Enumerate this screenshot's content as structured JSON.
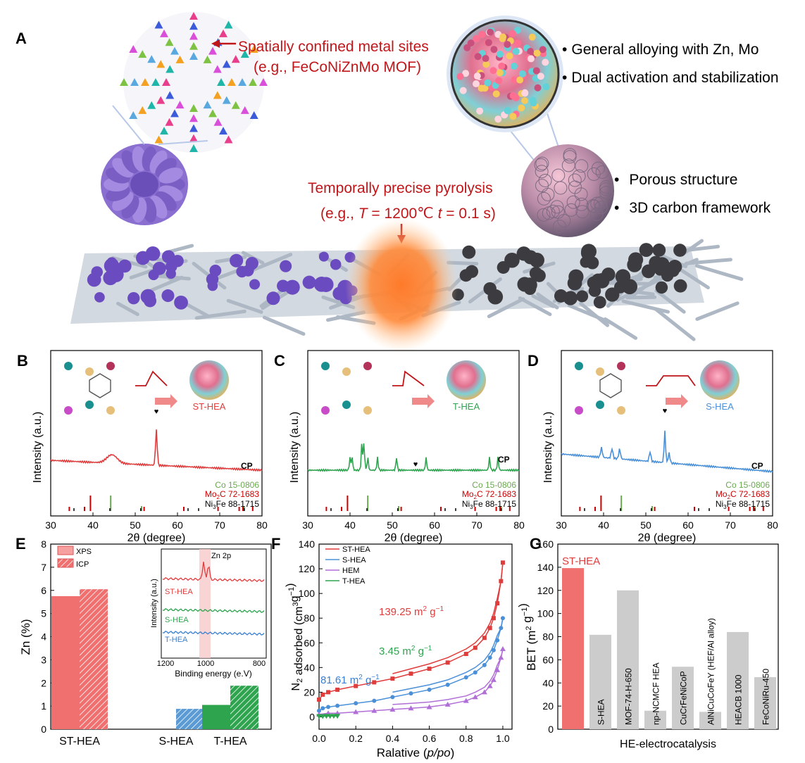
{
  "figure": {
    "panels": {
      "A": "A",
      "B": "B",
      "C": "C",
      "D": "D",
      "E": "E",
      "F": "F",
      "G": "G"
    }
  },
  "panel_a": {
    "arrow_text_1": "Spatially confined metal sites",
    "arrow_text_2": "(e.g., FeCoNiZnMo MOF)",
    "bullets_top": [
      "General alloying with Zn, Mo",
      "Dual activation and stabilization"
    ],
    "pyrolysis_title": "Temporally precise pyrolysis",
    "pyrolysis_prefix": "(e.g., ",
    "pyrolysis_T": "T",
    "pyrolysis_eq1": " = 1200℃ ",
    "pyrolysis_t": "t",
    "pyrolysis_eq2": " = 0.1 s)",
    "bullets_bottom": [
      "Porous structure",
      "3D carbon framework"
    ],
    "bullet_glyph": "•"
  },
  "xrd_panels": {
    "B": {
      "sample": "ST-HEA",
      "color": "#e03c3c",
      "profile": "single-pulse",
      "main_peak_deg": 55,
      "low_peak_deg": 44.5
    },
    "C": {
      "sample": "T-HEA",
      "color": "#2ea44f",
      "profile": "sharp-pulse",
      "peaks_deg": [
        40,
        40.5,
        42.8,
        43.3,
        44.2,
        46.5,
        51,
        58,
        73,
        75
      ]
    },
    "D": {
      "sample": "S-HEA",
      "color": "#4a90d9",
      "profile": "long-plateau",
      "main_peak_deg": 54.5,
      "peaks_deg": [
        39.5,
        42,
        43.8,
        51,
        55.5
      ]
    }
  },
  "xrd_axes": {
    "ylabel": "Intensity (a.u.)",
    "xlabel_prefix": "2θ (degree)",
    "xmin": 30,
    "xmax": 80,
    "ticks": [
      "30",
      "40",
      "50",
      "60",
      "70",
      "80"
    ],
    "cp_label": "CP",
    "heart_glyph": "♥",
    "refs": [
      {
        "name": "Co 15-0806",
        "color": "#6aa84f"
      },
      {
        "name": "Mo2C 72-1683",
        "color": "#cc0000"
      },
      {
        "name": "Ni3Fe 88-1715",
        "color": "#000000"
      }
    ],
    "ref_labels": {
      "co": "Co 15-0806",
      "mo_a": "Mo",
      "mo_sub": "2",
      "mo_b": "C 72-1683",
      "ni_a": "Ni",
      "ni_sub": "3",
      "ni_b": "Fe 88-1715"
    }
  },
  "chart_data": [
    {
      "panel": "E",
      "type": "bar",
      "categories": [
        "ST-HEA",
        "S-HEA",
        "T-HEA"
      ],
      "series": [
        {
          "name": "XPS",
          "values": [
            5.75,
            null,
            1.05
          ]
        },
        {
          "name": "ICP",
          "values": [
            6.05,
            0.88,
            1.88
          ]
        }
      ],
      "ylabel": "Zn (%)",
      "ylim": [
        0,
        8
      ],
      "yticks": [
        "0",
        "1",
        "2",
        "3",
        "4",
        "5",
        "6",
        "7",
        "8"
      ],
      "colors": {
        "ST-HEA": "#f07070",
        "S-HEA": "#5b9bd5",
        "T-HEA": "#2ea44f"
      },
      "legend": "top-left",
      "inset": {
        "xlabel": "Binding energy (e.V)",
        "ylabel": "Intensity (a.u.)",
        "xticks": [
          "1200",
          "1000",
          "800"
        ],
        "annotation": "Zn 2p",
        "series": [
          "ST-HEA",
          "S-HEA",
          "T-HEA"
        ]
      }
    },
    {
      "panel": "F",
      "type": "line",
      "xlabel": "Ralative (p/po)",
      "xlim": [
        0,
        1.05
      ],
      "ylim": [
        -10,
        140
      ],
      "xticks": [
        "0.0",
        "0.2",
        "0.4",
        "0.6",
        "0.8",
        "1.0"
      ],
      "yticks": [
        "0",
        "20",
        "40",
        "60",
        "80",
        "100",
        "120",
        "140"
      ],
      "series": [
        {
          "name": "ST-HEA",
          "color": "#e03c3c",
          "x": [
            0.0,
            0.02,
            0.05,
            0.1,
            0.2,
            0.3,
            0.4,
            0.5,
            0.6,
            0.7,
            0.8,
            0.85,
            0.9,
            0.93,
            0.95,
            0.97,
            0.99,
            1.0
          ],
          "y": [
            14,
            18,
            20,
            22,
            25,
            28,
            31,
            35,
            39,
            44,
            51,
            56,
            64,
            72,
            80,
            92,
            110,
            125
          ]
        },
        {
          "name": "S-HEA",
          "color": "#4a90d9",
          "x": [
            0.0,
            0.02,
            0.05,
            0.1,
            0.2,
            0.3,
            0.4,
            0.5,
            0.6,
            0.7,
            0.8,
            0.85,
            0.9,
            0.93,
            0.95,
            0.97,
            0.99,
            1.0
          ],
          "y": [
            5,
            7,
            8,
            9,
            11,
            13,
            16,
            19,
            22,
            26,
            32,
            36,
            42,
            48,
            54,
            62,
            72,
            80
          ]
        },
        {
          "name": "HEM",
          "color": "#b06fd6",
          "x": [
            0.0,
            0.05,
            0.1,
            0.2,
            0.3,
            0.4,
            0.5,
            0.6,
            0.7,
            0.8,
            0.85,
            0.9,
            0.93,
            0.95,
            0.97,
            0.99,
            1.0
          ],
          "y": [
            2,
            3,
            3,
            4,
            5,
            6,
            7,
            8,
            10,
            13,
            16,
            20,
            25,
            30,
            38,
            48,
            55
          ]
        },
        {
          "name": "T-HEA",
          "color": "#2ea44f",
          "x": [
            0.0,
            0.02,
            0.04,
            0.06,
            0.08,
            0.1
          ],
          "y": [
            0.5,
            0.5,
            0.6,
            0.6,
            0.7,
            0.7
          ]
        }
      ],
      "annotations": [
        {
          "text": "139.25",
          "color": "#e03c3c"
        },
        {
          "text": "81.61",
          "color": "#3a7fd0"
        },
        {
          "text": "3.45",
          "color": "#2ea44f"
        }
      ],
      "unit_a": "m",
      "unit_sup_a": "2",
      "unit_b": " g",
      "unit_sup_b": "−1",
      "legend": "top-left"
    },
    {
      "panel": "G",
      "type": "bar",
      "categories": [
        "ST-HEA",
        "S-HEA",
        "MOF-74-H-650",
        "np-NCMCF HEA",
        "CuCrFeNiCoP",
        "AlNiCuCoFeY (HEF/Al alloy)",
        "HEACB 1000",
        "FeCoNiRu-450"
      ],
      "values": [
        139.25,
        81.61,
        120,
        16,
        54,
        15,
        84,
        45
      ],
      "ylim": [
        0,
        160
      ],
      "yticks": [
        "0",
        "20",
        "40",
        "60",
        "80",
        "100",
        "120",
        "140",
        "160"
      ],
      "xlabel": "HE-electrocatalysis",
      "colors": {
        "highlight": "#f07070",
        "default": "#cccccc"
      }
    }
  ]
}
